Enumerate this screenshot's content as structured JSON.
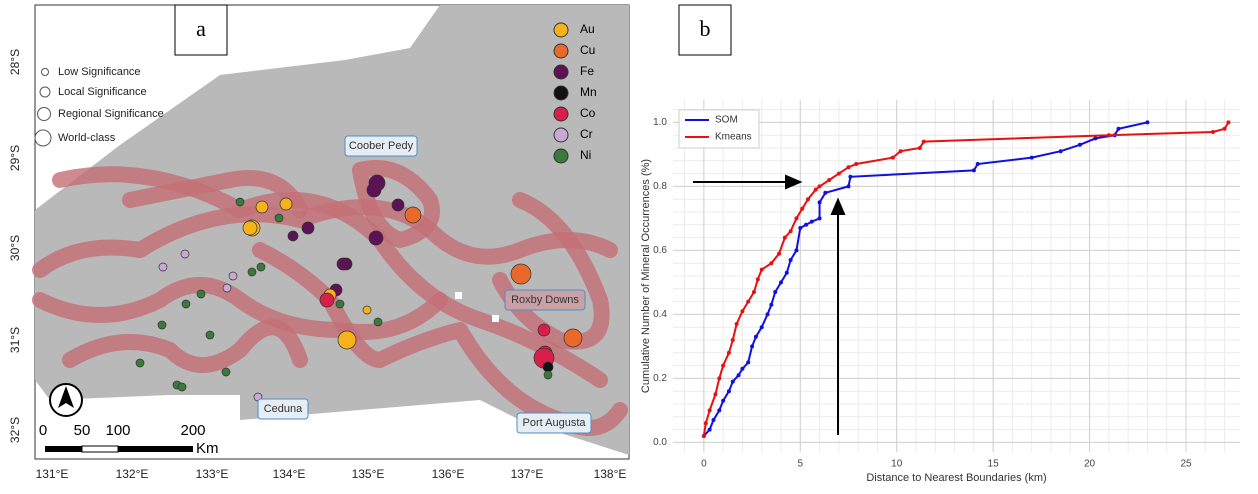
{
  "map": {
    "panel_label": "a",
    "lat_labels": [
      "28°S",
      "29°S",
      "30°S",
      "31°S",
      "32°S"
    ],
    "lon_labels": [
      "131°E",
      "132°E",
      "133°E",
      "134°E",
      "135°E",
      "136°E",
      "137°E",
      "138°E"
    ],
    "size_legend": [
      "Low Significance",
      "Local Significance",
      "Regional Significance",
      "World-class"
    ],
    "minerals": [
      {
        "name": "Au",
        "color": "#f5b21a"
      },
      {
        "name": "Cu",
        "color": "#e8692a"
      },
      {
        "name": "Fe",
        "color": "#5c1254"
      },
      {
        "name": "Mn",
        "color": "#111111"
      },
      {
        "name": "Co",
        "color": "#d81f4a"
      },
      {
        "name": "Cr",
        "color": "#c9a8d6"
      },
      {
        "name": "Ni",
        "color": "#3a7a3a"
      }
    ],
    "places": [
      "Coober Pedy",
      "Roxby Downs",
      "Ceduna",
      "Port Augusta"
    ],
    "scale_labels": [
      "0",
      "50",
      "100",
      "200"
    ],
    "scale_unit": "Km"
  },
  "chart_data": {
    "type": "line",
    "panel_label": "b",
    "xlabel": "Distance to Nearest Boundaries (km)",
    "ylabel": "Cumulative Number of Mineral Occurrences (%)",
    "xlim": [
      -1.6,
      27.8
    ],
    "ylim": [
      -0.03,
      1.07
    ],
    "xticks": [
      0,
      5,
      10,
      15,
      20,
      25
    ],
    "yticks": [
      {
        "value": 0,
        "label": "0.0"
      },
      0.2,
      0.4,
      0.6,
      0.8,
      {
        "value": 1,
        "label": "1.0"
      }
    ],
    "grid": true,
    "legend": "upper left",
    "series": [
      {
        "name": "SOM",
        "color": "#1010e0",
        "x": [
          0,
          0.3,
          0.5,
          0.8,
          1,
          1.3,
          1.5,
          1.8,
          2,
          2.3,
          2.5,
          2.7,
          3,
          3.3,
          3.5,
          3.7,
          4,
          4.3,
          4.5,
          4.8,
          5,
          5.3,
          5.6,
          6,
          6,
          6.3,
          7.5,
          7.6,
          14,
          14.2,
          17,
          18.5,
          19.5,
          20.3,
          21.3,
          21.5,
          23
        ],
        "values": [
          0.02,
          0.04,
          0.07,
          0.1,
          0.13,
          0.16,
          0.19,
          0.21,
          0.23,
          0.25,
          0.3,
          0.33,
          0.36,
          0.4,
          0.43,
          0.47,
          0.5,
          0.53,
          0.57,
          0.6,
          0.67,
          0.68,
          0.69,
          0.7,
          0.75,
          0.78,
          0.8,
          0.83,
          0.85,
          0.87,
          0.89,
          0.91,
          0.93,
          0.95,
          0.96,
          0.98,
          1.0
        ]
      },
      {
        "name": "Kmeans",
        "color": "#e81010",
        "x": [
          0,
          0.1,
          0.3,
          0.6,
          0.8,
          1,
          1.3,
          1.5,
          1.7,
          2,
          2.3,
          2.6,
          2.8,
          3,
          3.5,
          3.9,
          4.2,
          4.5,
          4.8,
          5.1,
          5.4,
          5.8,
          6,
          6.5,
          7,
          7.5,
          7.9,
          9.8,
          10.2,
          11.2,
          11.4,
          21,
          26.4,
          27,
          27.2
        ],
        "values": [
          0.02,
          0.06,
          0.1,
          0.15,
          0.2,
          0.24,
          0.28,
          0.32,
          0.37,
          0.41,
          0.44,
          0.47,
          0.51,
          0.54,
          0.56,
          0.59,
          0.64,
          0.66,
          0.7,
          0.73,
          0.76,
          0.79,
          0.8,
          0.82,
          0.84,
          0.86,
          0.87,
          0.89,
          0.91,
          0.92,
          0.94,
          0.96,
          0.97,
          0.98,
          1.0
        ]
      }
    ]
  }
}
